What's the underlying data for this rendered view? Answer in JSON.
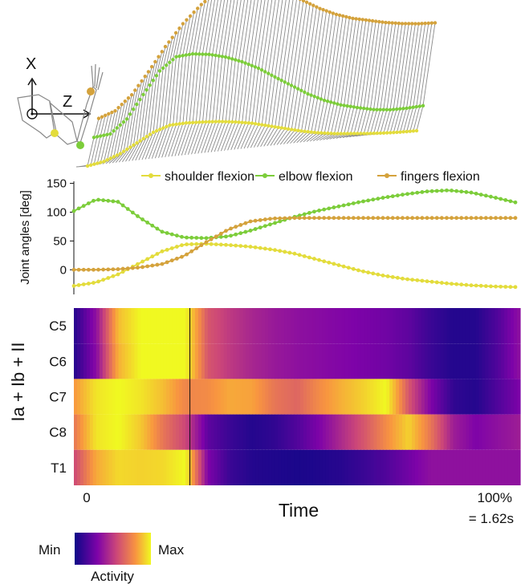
{
  "chart_data": [
    {
      "type": "line",
      "ylabel": "Joint angles [deg]",
      "yticks": [
        0,
        50,
        100,
        150
      ],
      "ylim": [
        -40,
        155
      ],
      "x_range": [
        0,
        100
      ],
      "series": [
        {
          "name": "shoulder flexion",
          "color": "#e3dc3c",
          "x": [
            0,
            5,
            10,
            15,
            20,
            25,
            30,
            35,
            40,
            45,
            50,
            55,
            60,
            65,
            70,
            75,
            80,
            85,
            90,
            95,
            100
          ],
          "values": [
            -28,
            -22,
            -8,
            12,
            32,
            44,
            45,
            43,
            40,
            35,
            28,
            18,
            8,
            -2,
            -10,
            -16,
            -20,
            -24,
            -27,
            -29,
            -30
          ]
        },
        {
          "name": "elbow flexion",
          "color": "#7ccd3a",
          "x": [
            0,
            5,
            10,
            15,
            20,
            25,
            30,
            35,
            40,
            45,
            50,
            55,
            60,
            65,
            70,
            75,
            80,
            85,
            90,
            95,
            100
          ],
          "values": [
            102,
            122,
            118,
            90,
            66,
            56,
            55,
            58,
            68,
            80,
            92,
            102,
            110,
            118,
            125,
            131,
            136,
            138,
            134,
            126,
            117
          ]
        },
        {
          "name": "fingers flexion",
          "color": "#d4a23c",
          "x": [
            0,
            5,
            10,
            15,
            20,
            25,
            30,
            35,
            40,
            45,
            50,
            55,
            60,
            65,
            70,
            75,
            80,
            85,
            90,
            95,
            100
          ],
          "values": [
            0,
            0,
            1,
            4,
            10,
            24,
            48,
            70,
            84,
            89,
            90,
            90,
            90,
            90,
            90,
            90,
            90,
            90,
            90,
            90,
            90
          ]
        }
      ]
    },
    {
      "type": "heatmap",
      "ylabel": "Ia + Ib + II",
      "xlabel": "Time",
      "rows": [
        "C5",
        "C6",
        "C7",
        "C8",
        "T1"
      ],
      "x_tick_left": "0",
      "x_tick_right_1": "100%",
      "x_tick_right_2": "= 1.62s",
      "marker_time_pct": 26,
      "colorbar": {
        "min_label": "Min",
        "max_label": "Max",
        "title": "Activity"
      },
      "x": [
        0,
        5,
        10,
        15,
        20,
        25,
        30,
        35,
        40,
        45,
        50,
        55,
        60,
        65,
        70,
        75,
        80,
        85,
        90,
        95,
        100
      ],
      "values": [
        [
          0.05,
          0.3,
          0.85,
          1.0,
          1.0,
          1.0,
          0.55,
          0.45,
          0.38,
          0.33,
          0.3,
          0.28,
          0.26,
          0.24,
          0.22,
          0.18,
          0.1,
          0.05,
          0.05,
          0.15,
          0.3
        ],
        [
          0.05,
          0.28,
          0.82,
          1.0,
          1.0,
          1.0,
          0.55,
          0.45,
          0.38,
          0.33,
          0.3,
          0.28,
          0.26,
          0.24,
          0.22,
          0.18,
          0.1,
          0.05,
          0.05,
          0.15,
          0.3
        ],
        [
          0.75,
          0.95,
          1.0,
          0.95,
          0.85,
          0.7,
          0.72,
          0.8,
          0.78,
          0.65,
          0.6,
          0.72,
          0.82,
          0.9,
          1.0,
          0.55,
          0.25,
          0.08,
          0.05,
          0.15,
          0.25
        ],
        [
          0.65,
          0.95,
          1.0,
          0.88,
          0.65,
          0.5,
          0.18,
          0.1,
          0.05,
          0.08,
          0.15,
          0.25,
          0.4,
          0.55,
          0.72,
          0.9,
          0.65,
          0.35,
          0.25,
          0.3,
          0.35
        ],
        [
          0.5,
          0.8,
          0.92,
          0.9,
          0.92,
          1.0,
          0.25,
          0.1,
          0.05,
          0.04,
          0.03,
          0.04,
          0.06,
          0.1,
          0.15,
          0.22,
          0.3,
          0.3,
          0.3,
          0.3,
          0.3
        ]
      ]
    }
  ],
  "icon": "arm-stick-figure-icon",
  "axis_letters": {
    "vertical": "X",
    "horizontal": "Z"
  }
}
